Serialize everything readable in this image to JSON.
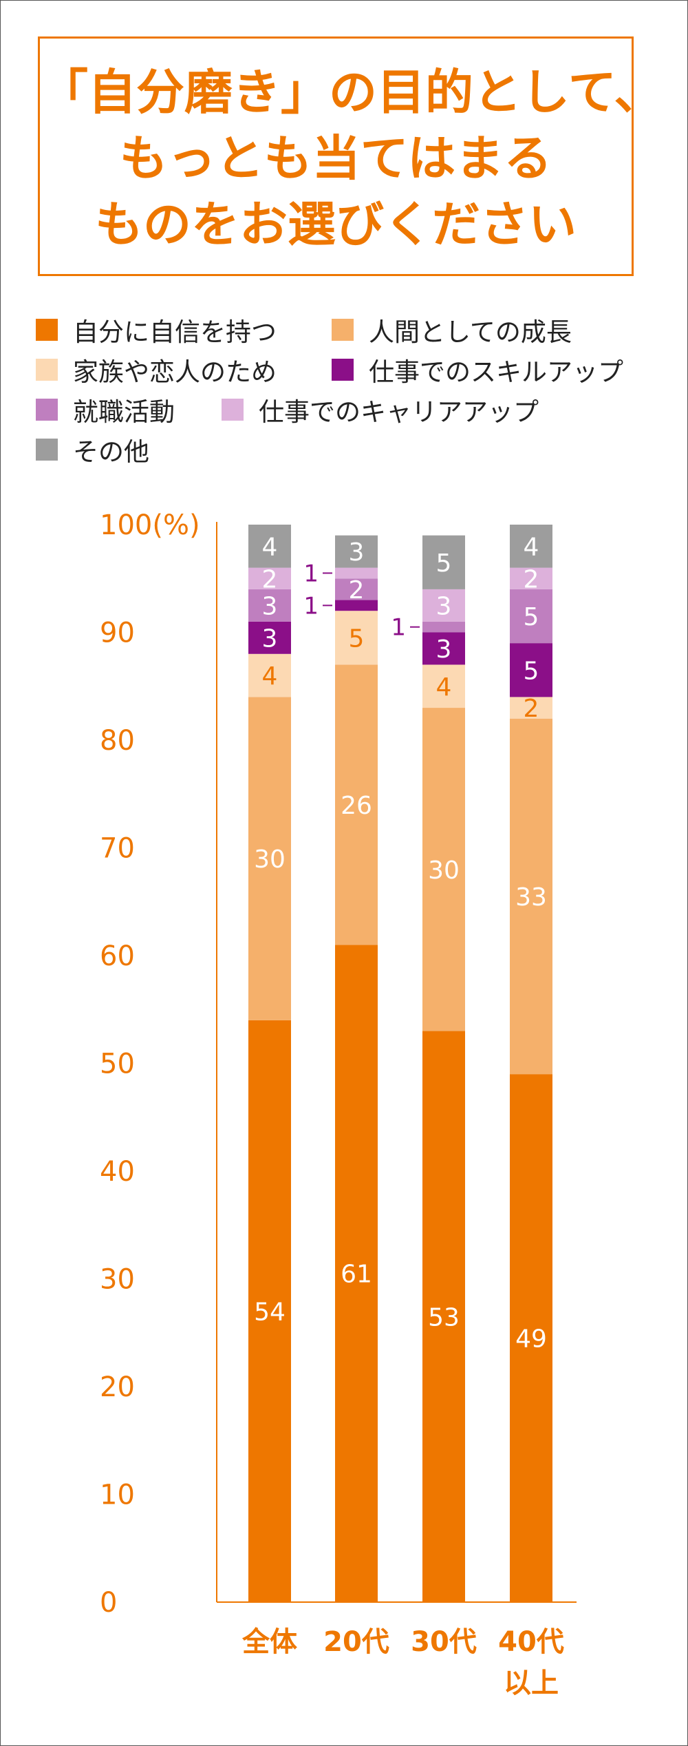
{
  "title_lines": [
    "「自分磨き」の目的として、",
    "もっとも当てはまる",
    "ものをお選びください"
  ],
  "colors": {
    "accent": "#ee7700",
    "axis": "#ee7700"
  },
  "chart_data": {
    "type": "bar",
    "stacked": true,
    "title": "「自分磨き」の目的として、もっとも当てはまるものをお選びください",
    "categories": [
      "全体",
      "20代",
      "30代",
      "40代以上"
    ],
    "category_lines": [
      [
        "全体"
      ],
      [
        "20代"
      ],
      [
        "30代"
      ],
      [
        "40代",
        "以上"
      ]
    ],
    "ylim": [
      0,
      100
    ],
    "yticks": [
      0,
      10,
      20,
      30,
      40,
      50,
      60,
      70,
      80,
      90,
      100
    ],
    "ytick_top_label": "100(%)",
    "legend_position": "top",
    "series": [
      {
        "name": "自分に自信を持つ",
        "color": "#ee7700",
        "label_color": "#ffffff",
        "values": [
          54,
          61,
          53,
          49
        ]
      },
      {
        "name": "人間としての成長",
        "color": "#f5b06b",
        "label_color": "#ffffff",
        "values": [
          30,
          26,
          30,
          33
        ]
      },
      {
        "name": "家族や恋人のため",
        "color": "#fcd9b3",
        "label_color": "#ee7700",
        "values": [
          4,
          5,
          4,
          2
        ]
      },
      {
        "name": "仕事でのスキルアップ",
        "color": "#8b0f88",
        "label_color": "#ffffff",
        "values": [
          3,
          1,
          3,
          5
        ]
      },
      {
        "name": "就職活動",
        "color": "#bf7fbf",
        "label_color": "#ffffff",
        "values": [
          3,
          2,
          1,
          5
        ]
      },
      {
        "name": "仕事でのキャリアアップ",
        "color": "#ddb1db",
        "label_color": "#ffffff",
        "values": [
          2,
          1,
          3,
          2
        ]
      },
      {
        "name": "その他",
        "color": "#9d9d9d",
        "label_color": "#ffffff",
        "values": [
          4,
          3,
          5,
          4
        ]
      }
    ],
    "outside_label_color": "#8b0f88"
  }
}
